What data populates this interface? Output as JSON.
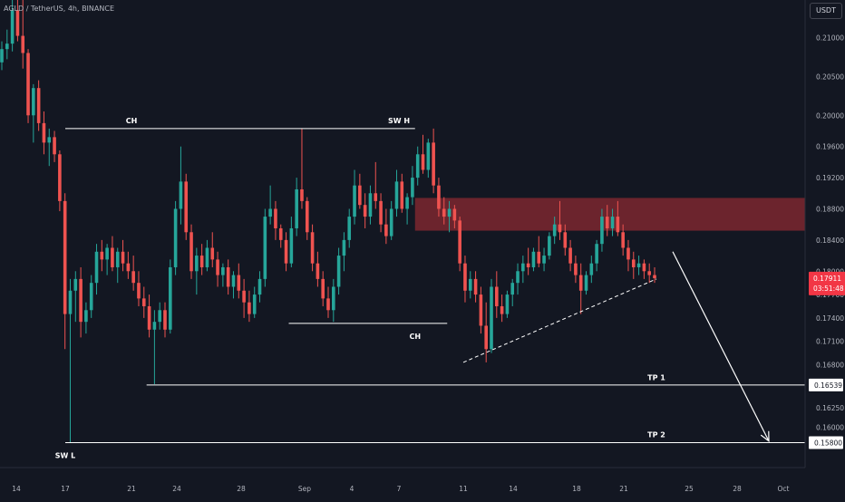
{
  "header": {
    "symbol_title": "AGLD / TetherUS, 4h, BINANCE",
    "currency": "USDT"
  },
  "chart_data": {
    "type": "candlestick",
    "title": "AGLD / TetherUS, 4h, BINANCE",
    "ylim": [
      0.1548,
      0.2148
    ],
    "y_ticks": [
      "0.21000",
      "0.20500",
      "0.20000",
      "0.19600",
      "0.19200",
      "0.18800",
      "0.18400",
      "0.18000",
      "0.17700",
      "0.17400",
      "0.17100",
      "0.16800",
      "0.16250",
      "0.16000"
    ],
    "x_ticks": [
      "14",
      "17",
      "21",
      "24",
      "28",
      "Sep",
      "4",
      "7",
      "11",
      "14",
      "18",
      "21",
      "25",
      "28",
      "Oct"
    ],
    "current_price": {
      "value": "0.17911",
      "countdown": "03:51:48"
    },
    "price_labels": [
      {
        "value": "0.16539",
        "level": 0.16539
      },
      {
        "value": "0.15800",
        "level": 0.158
      }
    ],
    "annotations": [
      {
        "text": "CH",
        "kind": "label",
        "x": "Aug 21",
        "y": 0.199
      },
      {
        "text": "SW H",
        "kind": "label",
        "x": "Sep 7",
        "y": 0.199
      },
      {
        "text": "CH",
        "kind": "label",
        "x": "Sep 8",
        "y": 0.1713
      },
      {
        "text": "SW L",
        "kind": "label",
        "x": "Aug 17",
        "y": 0.156
      },
      {
        "text": "TP 1",
        "kind": "label",
        "x": "Sep 23",
        "y": 0.166
      },
      {
        "text": "TP 2",
        "kind": "label",
        "x": "Sep 23",
        "y": 0.1587
      }
    ],
    "levels": [
      {
        "name": "ch-high",
        "price": 0.1983,
        "from": "Aug 17",
        "to": "Sep 8"
      },
      {
        "name": "ch-low",
        "price": 0.1733,
        "from": "Aug 31",
        "to": "Sep 10"
      },
      {
        "name": "tp1",
        "price": 0.16539,
        "from": "Aug 22",
        "to": "Oct 1"
      },
      {
        "name": "tp2",
        "price": 0.158,
        "from": "Aug 17",
        "to": "Oct 1"
      }
    ],
    "supply_zone": {
      "price_from": 0.1852,
      "price_to": 0.1894,
      "from": "Sep 8",
      "to": "Oct 1"
    },
    "trendline": {
      "from": {
        "x": "Sep 11",
        "y": 0.1683
      },
      "to": {
        "x": "Sep 23",
        "y": 0.179
      },
      "style": "dashed"
    },
    "projection_arrow": {
      "from": {
        "x": "Sep 24",
        "y": 0.1825
      },
      "to": {
        "x": "Sep 30",
        "y": 0.1582
      }
    },
    "colors": {
      "up": "#26a69a",
      "down": "#ef5350",
      "background": "#131722",
      "zone": "#8b2a31",
      "lines": "#ffffff",
      "price_tag": "#f23645"
    },
    "candles": [
      [
        0.2068,
        0.2095,
        0.2058,
        0.2085
      ],
      [
        0.2085,
        0.211,
        0.2072,
        0.2092
      ],
      [
        0.2092,
        0.2148,
        0.2082,
        0.2135
      ],
      [
        0.2135,
        0.2148,
        0.2095,
        0.2102
      ],
      [
        0.2102,
        0.2148,
        0.206,
        0.208
      ],
      [
        0.208,
        0.2085,
        0.199,
        0.2
      ],
      [
        0.2,
        0.204,
        0.1965,
        0.2035
      ],
      [
        0.2035,
        0.2045,
        0.198,
        0.199
      ],
      [
        0.199,
        0.2005,
        0.195,
        0.1965
      ],
      [
        0.1965,
        0.1983,
        0.1935,
        0.1972
      ],
      [
        0.1972,
        0.198,
        0.194,
        0.195
      ],
      [
        0.195,
        0.1955,
        0.1877,
        0.189
      ],
      [
        0.189,
        0.19,
        0.17,
        0.1745
      ],
      [
        0.1745,
        0.179,
        0.158,
        0.1775
      ],
      [
        0.1775,
        0.18,
        0.1735,
        0.179
      ],
      [
        0.179,
        0.1805,
        0.1715,
        0.1735
      ],
      [
        0.1735,
        0.176,
        0.172,
        0.175
      ],
      [
        0.175,
        0.1795,
        0.174,
        0.1785
      ],
      [
        0.1785,
        0.1835,
        0.177,
        0.1825
      ],
      [
        0.1825,
        0.184,
        0.18,
        0.1815
      ],
      [
        0.1815,
        0.1835,
        0.1795,
        0.183
      ],
      [
        0.183,
        0.1845,
        0.18,
        0.1805
      ],
      [
        0.1805,
        0.183,
        0.1785,
        0.1825
      ],
      [
        0.1825,
        0.184,
        0.18,
        0.181
      ],
      [
        0.181,
        0.1825,
        0.179,
        0.18
      ],
      [
        0.18,
        0.182,
        0.1775,
        0.1785
      ],
      [
        0.1785,
        0.18,
        0.1755,
        0.1765
      ],
      [
        0.1765,
        0.178,
        0.174,
        0.1755
      ],
      [
        0.1755,
        0.177,
        0.1715,
        0.1725
      ],
      [
        0.1725,
        0.175,
        0.1655,
        0.1735
      ],
      [
        0.1735,
        0.176,
        0.1725,
        0.175
      ],
      [
        0.175,
        0.176,
        0.1715,
        0.1725
      ],
      [
        0.1725,
        0.1815,
        0.172,
        0.1805
      ],
      [
        0.1805,
        0.189,
        0.1795,
        0.188
      ],
      [
        0.188,
        0.196,
        0.186,
        0.1915
      ],
      [
        0.1915,
        0.1925,
        0.184,
        0.185
      ],
      [
        0.185,
        0.186,
        0.179,
        0.18
      ],
      [
        0.18,
        0.183,
        0.177,
        0.182
      ],
      [
        0.182,
        0.1835,
        0.1795,
        0.1805
      ],
      [
        0.1805,
        0.184,
        0.18,
        0.183
      ],
      [
        0.183,
        0.185,
        0.1805,
        0.1815
      ],
      [
        0.1815,
        0.1825,
        0.178,
        0.1795
      ],
      [
        0.1795,
        0.181,
        0.178,
        0.1805
      ],
      [
        0.1805,
        0.1815,
        0.177,
        0.178
      ],
      [
        0.178,
        0.18,
        0.1765,
        0.1795
      ],
      [
        0.1795,
        0.181,
        0.1765,
        0.1775
      ],
      [
        0.1775,
        0.179,
        0.174,
        0.176
      ],
      [
        0.176,
        0.1775,
        0.1735,
        0.1745
      ],
      [
        0.1745,
        0.178,
        0.174,
        0.177
      ],
      [
        0.177,
        0.18,
        0.176,
        0.179
      ],
      [
        0.179,
        0.188,
        0.178,
        0.187
      ],
      [
        0.187,
        0.191,
        0.186,
        0.188
      ],
      [
        0.188,
        0.189,
        0.184,
        0.1855
      ],
      [
        0.1855,
        0.186,
        0.183,
        0.184
      ],
      [
        0.184,
        0.185,
        0.18,
        0.181
      ],
      [
        0.181,
        0.187,
        0.1805,
        0.1855
      ],
      [
        0.1855,
        0.192,
        0.1845,
        0.1905
      ],
      [
        0.1905,
        0.1983,
        0.188,
        0.189
      ],
      [
        0.189,
        0.1895,
        0.184,
        0.185
      ],
      [
        0.185,
        0.186,
        0.18,
        0.181
      ],
      [
        0.181,
        0.1825,
        0.178,
        0.179
      ],
      [
        0.179,
        0.18,
        0.1755,
        0.1765
      ],
      [
        0.1765,
        0.178,
        0.174,
        0.175
      ],
      [
        0.175,
        0.179,
        0.1735,
        0.178
      ],
      [
        0.178,
        0.183,
        0.177,
        0.182
      ],
      [
        0.182,
        0.185,
        0.18,
        0.184
      ],
      [
        0.184,
        0.188,
        0.183,
        0.187
      ],
      [
        0.187,
        0.193,
        0.186,
        0.191
      ],
      [
        0.191,
        0.1925,
        0.188,
        0.1885
      ],
      [
        0.1885,
        0.19,
        0.1855,
        0.187
      ],
      [
        0.187,
        0.191,
        0.186,
        0.19
      ],
      [
        0.19,
        0.194,
        0.188,
        0.189
      ],
      [
        0.189,
        0.19,
        0.185,
        0.186
      ],
      [
        0.186,
        0.188,
        0.1835,
        0.1845
      ],
      [
        0.1845,
        0.189,
        0.184,
        0.188
      ],
      [
        0.188,
        0.193,
        0.187,
        0.1915
      ],
      [
        0.1915,
        0.1925,
        0.1875,
        0.188
      ],
      [
        0.188,
        0.19,
        0.186,
        0.1895
      ],
      [
        0.1895,
        0.1935,
        0.1885,
        0.192
      ],
      [
        0.192,
        0.196,
        0.191,
        0.195
      ],
      [
        0.195,
        0.1975,
        0.1925,
        0.193
      ],
      [
        0.193,
        0.197,
        0.192,
        0.1965
      ],
      [
        0.1965,
        0.1983,
        0.19,
        0.191
      ],
      [
        0.191,
        0.192,
        0.187,
        0.188
      ],
      [
        0.188,
        0.1895,
        0.186,
        0.187
      ],
      [
        0.187,
        0.189,
        0.185,
        0.188
      ],
      [
        0.188,
        0.1885,
        0.1855,
        0.1865
      ],
      [
        0.1865,
        0.187,
        0.18,
        0.181
      ],
      [
        0.181,
        0.182,
        0.176,
        0.1775
      ],
      [
        0.1775,
        0.18,
        0.1765,
        0.179
      ],
      [
        0.179,
        0.18,
        0.176,
        0.177
      ],
      [
        0.177,
        0.178,
        0.172,
        0.173
      ],
      [
        0.173,
        0.176,
        0.1683,
        0.17
      ],
      [
        0.17,
        0.179,
        0.1695,
        0.178
      ],
      [
        0.178,
        0.18,
        0.174,
        0.1755
      ],
      [
        0.1755,
        0.177,
        0.1735,
        0.1745
      ],
      [
        0.1745,
        0.1775,
        0.174,
        0.177
      ],
      [
        0.177,
        0.179,
        0.1755,
        0.1785
      ],
      [
        0.1785,
        0.181,
        0.177,
        0.18
      ],
      [
        0.18,
        0.182,
        0.1785,
        0.181
      ],
      [
        0.181,
        0.183,
        0.1795,
        0.1805
      ],
      [
        0.1805,
        0.183,
        0.18,
        0.1825
      ],
      [
        0.1825,
        0.1845,
        0.1805,
        0.181
      ],
      [
        0.181,
        0.183,
        0.18,
        0.182
      ],
      [
        0.182,
        0.185,
        0.1815,
        0.1845
      ],
      [
        0.1845,
        0.187,
        0.1835,
        0.186
      ],
      [
        0.186,
        0.189,
        0.184,
        0.185
      ],
      [
        0.185,
        0.186,
        0.182,
        0.183
      ],
      [
        0.183,
        0.184,
        0.18,
        0.181
      ],
      [
        0.181,
        0.182,
        0.1785,
        0.1795
      ],
      [
        0.1795,
        0.181,
        0.1745,
        0.1775
      ],
      [
        0.1775,
        0.18,
        0.177,
        0.1795
      ],
      [
        0.1795,
        0.182,
        0.1785,
        0.181
      ],
      [
        0.181,
        0.184,
        0.18,
        0.1835
      ],
      [
        0.1835,
        0.188,
        0.1825,
        0.187
      ],
      [
        0.187,
        0.1885,
        0.1845,
        0.1855
      ],
      [
        0.1855,
        0.188,
        0.1845,
        0.187
      ],
      [
        0.187,
        0.189,
        0.1845,
        0.185
      ],
      [
        0.185,
        0.186,
        0.182,
        0.183
      ],
      [
        0.183,
        0.184,
        0.18,
        0.1815
      ],
      [
        0.1815,
        0.1825,
        0.179,
        0.1805
      ],
      [
        0.1805,
        0.182,
        0.1795,
        0.181
      ],
      [
        0.181,
        0.1815,
        0.179,
        0.18
      ],
      [
        0.18,
        0.181,
        0.1785,
        0.1795
      ],
      [
        0.1795,
        0.1805,
        0.1785,
        0.1791
      ]
    ]
  }
}
